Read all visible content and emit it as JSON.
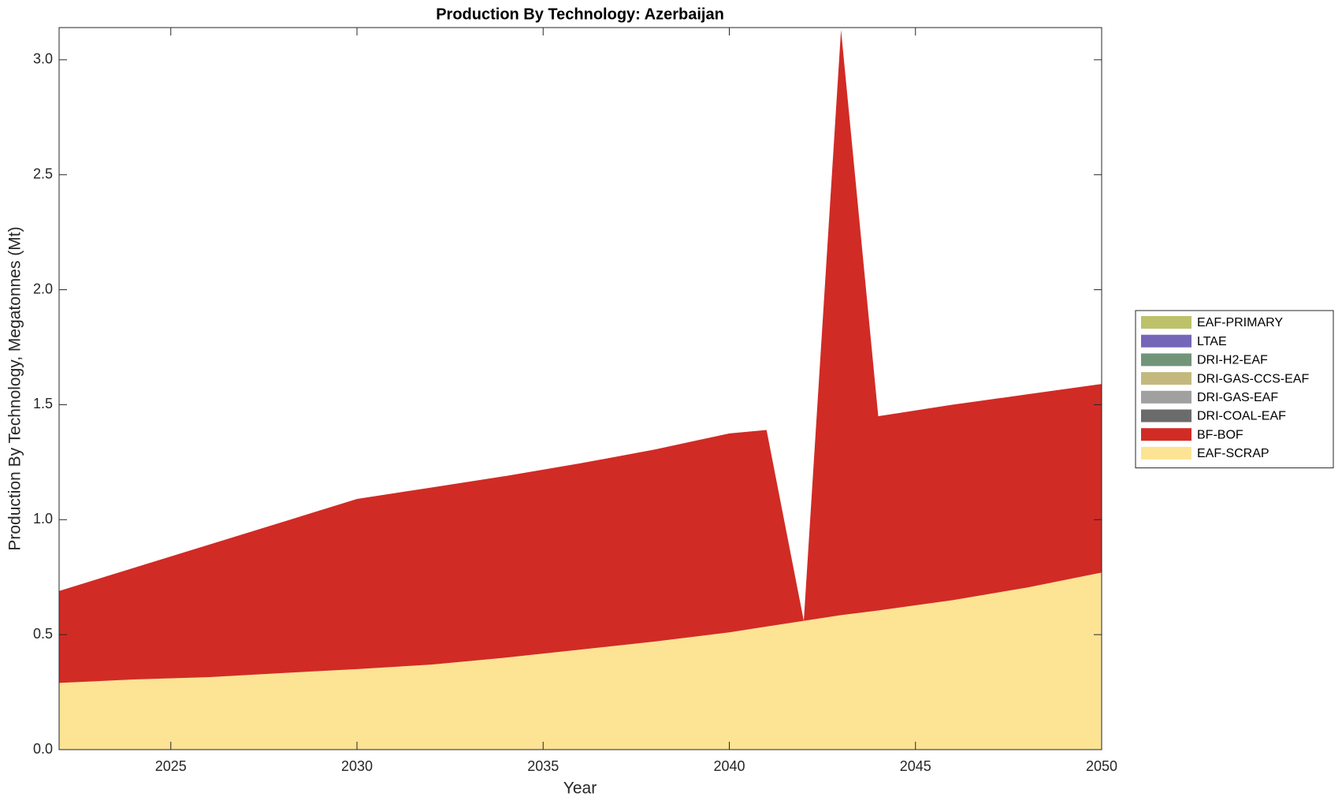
{
  "chart_data": {
    "type": "stacked_area",
    "title": "Production By Technology: Azerbaijan",
    "x_label": "Year",
    "y_label": "Production By Technology, Megatonnes (Mt)",
    "x": [
      2022,
      2024,
      2026,
      2028,
      2030,
      2032,
      2034,
      2036,
      2038,
      2040,
      2041,
      2042,
      2043,
      2044,
      2046,
      2048,
      2050
    ],
    "series": [
      {
        "name": "EAF-SCRAP",
        "color": "#fde394",
        "values": [
          0.29,
          0.305,
          0.315,
          0.333,
          0.35,
          0.37,
          0.4,
          0.435,
          0.47,
          0.51,
          0.535,
          0.56,
          0.585,
          0.605,
          0.65,
          0.705,
          0.77
        ]
      },
      {
        "name": "BF-BOF",
        "color": "#d12b25",
        "values": [
          0.4,
          0.485,
          0.575,
          0.657,
          0.74,
          0.77,
          0.79,
          0.81,
          0.835,
          0.865,
          0.855,
          0,
          2.545,
          0.845,
          0.85,
          0.84,
          0.82
        ]
      },
      {
        "name": "DRI-COAL-EAF",
        "color": "#6b6b6b",
        "values": [
          0,
          0,
          0,
          0,
          0,
          0,
          0,
          0,
          0,
          0,
          0,
          0,
          0,
          0,
          0,
          0,
          0
        ]
      },
      {
        "name": "DRI-GAS-EAF",
        "color": "#a0a0a0",
        "values": [
          0,
          0,
          0,
          0,
          0,
          0,
          0,
          0,
          0,
          0,
          0,
          0,
          0,
          0,
          0,
          0,
          0
        ]
      },
      {
        "name": "DRI-GAS-CCS-EAF",
        "color": "#c3b97e",
        "values": [
          0,
          0,
          0,
          0,
          0,
          0,
          0,
          0,
          0,
          0,
          0,
          0,
          0,
          0,
          0,
          0,
          0
        ]
      },
      {
        "name": "DRI-H2-EAF",
        "color": "#72957a",
        "values": [
          0,
          0,
          0,
          0,
          0,
          0,
          0,
          0,
          0,
          0,
          0,
          0,
          0,
          0,
          0,
          0,
          0
        ]
      },
      {
        "name": "LTAE",
        "color": "#7566b8",
        "values": [
          0,
          0,
          0,
          0,
          0,
          0,
          0,
          0,
          0,
          0,
          0,
          0,
          0,
          0,
          0,
          0,
          0
        ]
      },
      {
        "name": "EAF-PRIMARY",
        "color": "#bcc16a",
        "values": [
          0,
          0,
          0,
          0,
          0,
          0,
          0,
          0,
          0,
          0,
          0,
          0,
          0,
          0,
          0,
          0,
          0
        ]
      }
    ],
    "xlim": [
      2022,
      2050
    ],
    "xticks": [
      2025,
      2030,
      2035,
      2040,
      2045,
      2050
    ],
    "ylim": [
      0,
      3.14
    ],
    "yticks": [
      {
        "value": 0,
        "label": "0.0"
      },
      0.5,
      {
        "value": 1,
        "label": "1.0"
      },
      1.5,
      {
        "value": 2,
        "label": "2.0"
      },
      2.5,
      {
        "value": 3,
        "label": "3.0"
      }
    ],
    "legend": "right"
  }
}
